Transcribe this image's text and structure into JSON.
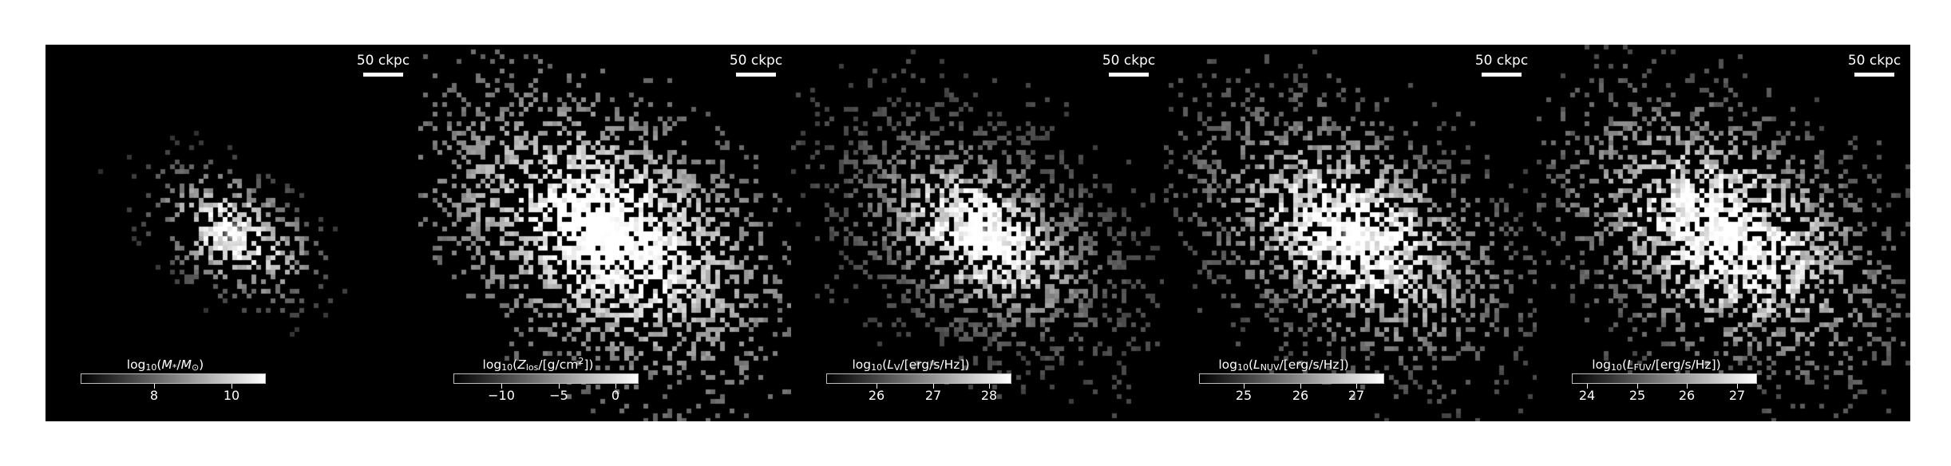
{
  "figure": {
    "description_type": "galaxy-maps",
    "panels": [
      {
        "id": "stellar-mass",
        "scale_label": "50 ckpc",
        "colorbar": {
          "label_html": "log<sub>10</sub>(<i>M</i><sub>*</sub>/<i>M</i><sub>⊙</sub>)",
          "label_text": "log10(M*/M⊙)",
          "vmin": 6.1,
          "vmax": 10.9,
          "ticks": [
            8,
            10
          ],
          "tick_labels": [
            "8",
            "10"
          ]
        }
      },
      {
        "id": "metallicity",
        "scale_label": "50 ckpc",
        "colorbar": {
          "label_html": "log<sub>10</sub>(<i>Z</i><sub>los</sub>/[g/cm<sup>2</sup>])",
          "label_text": "log10(Zlos/[g/cm2])",
          "vmin": -14.2,
          "vmax": 2.0,
          "ticks": [
            -10,
            -5,
            0
          ],
          "tick_labels": [
            "−10",
            "−5",
            "0"
          ]
        }
      },
      {
        "id": "v-band",
        "scale_label": "50 ckpc",
        "colorbar": {
          "label_html": "log<sub>10</sub>(<i>L</i><sub>V</sub>/[erg/s/Hz])",
          "label_text": "log10(LV/[erg/s/Hz])",
          "vmin": 25.1,
          "vmax": 28.4,
          "ticks": [
            26,
            27,
            28
          ],
          "tick_labels": [
            "26",
            "27",
            "28"
          ]
        }
      },
      {
        "id": "nuv-band",
        "scale_label": "50 ckpc",
        "colorbar": {
          "label_html": "log<sub>10</sub>(<i>L</i><sub>NUV</sub>/[erg/s/Hz])",
          "label_text": "log10(LNUV/[erg/s/Hz])",
          "vmin": 24.2,
          "vmax": 27.5,
          "ticks": [
            25,
            26,
            27
          ],
          "tick_labels": [
            "25",
            "26",
            "27"
          ]
        }
      },
      {
        "id": "fuv-band",
        "scale_label": "50 ckpc",
        "colorbar": {
          "label_html": "log<sub>10</sub>(<i>L</i><sub>FUV</sub>/[erg/s/Hz])",
          "label_text": "log10(LFUV/[erg/s/Hz])",
          "vmin": 23.7,
          "vmax": 27.4,
          "ticks": [
            24,
            25,
            26,
            27
          ],
          "tick_labels": [
            "24",
            "25",
            "26",
            "27"
          ]
        }
      }
    ]
  }
}
